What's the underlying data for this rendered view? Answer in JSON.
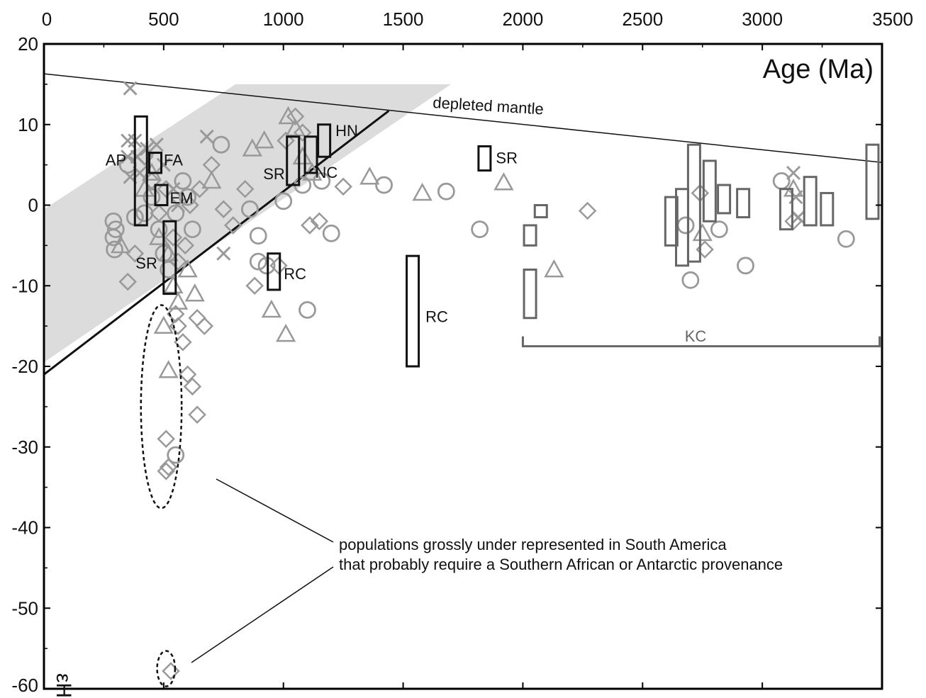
{
  "chart_data": {
    "type": "scatter",
    "xlabel": "Age (Ma)",
    "ylabel": "εHf",
    "xlim": [
      0,
      3500
    ],
    "ylim": [
      -60,
      20
    ],
    "x_ticks": [
      "0",
      "500",
      "1000",
      "1500",
      "2000",
      "2500",
      "3000",
      "3500"
    ],
    "y_ticks": [
      "20",
      "10",
      "0",
      "-10",
      "-20",
      "-30",
      "-40",
      "-50",
      "-60"
    ],
    "depleted_mantle": {
      "label": "depleted mantle",
      "points": [
        [
          0,
          16.3
        ],
        [
          3500,
          5.3
        ]
      ]
    },
    "crustal_line": {
      "points": [
        [
          0,
          -21
        ],
        [
          1440,
          11.7
        ]
      ]
    },
    "grey_band": {
      "polygon": [
        [
          0,
          -0.5
        ],
        [
          800,
          15
        ],
        [
          1700,
          15
        ],
        [
          0,
          -19.5
        ]
      ]
    },
    "annotation": "populations grossly under represented in South America\nthat probably require a Southern African or Antarctic provenance",
    "annotation_lines": [
      "populations grossly under represented in South America",
      "that probably require a Southern African or Antarctic provenance"
    ],
    "kc_bracket": {
      "label": "KC",
      "range": [
        2000,
        3490
      ],
      "y": -17.5
    },
    "ellipses": [
      {
        "cx": 490,
        "cy": -25,
        "rx": 170,
        "ry": 12.6
      },
      {
        "cx": 510,
        "cy": -57.5,
        "rx": 75,
        "ry": 2.2
      }
    ],
    "boxes": [
      {
        "x": 405,
        "ymin": -2.5,
        "ymax": 11,
        "label": "AP",
        "tone": "dark"
      },
      {
        "x": 465,
        "ymin": 4,
        "ymax": 6.5,
        "label": "FA",
        "tone": "dark"
      },
      {
        "x": 490,
        "ymin": 0,
        "ymax": 2.5,
        "label": "EM",
        "tone": "dark"
      },
      {
        "x": 525,
        "ymin": -11,
        "ymax": -2,
        "label": "SR",
        "tone": "dark"
      },
      {
        "x": 1040,
        "ymin": 2.5,
        "ymax": 8.5,
        "label": "SR",
        "tone": "dark"
      },
      {
        "x": 1115,
        "ymin": 4,
        "ymax": 8.5,
        "label": "NC",
        "tone": "dark"
      },
      {
        "x": 1170,
        "ymin": 6,
        "ymax": 10,
        "label": "HN",
        "tone": "dark"
      },
      {
        "x": 960,
        "ymin": -10.5,
        "ymax": -6,
        "label": "RC",
        "tone": "dark"
      },
      {
        "x": 1540,
        "ymin": -20,
        "ymax": -6.3,
        "label": "RC",
        "tone": "dark"
      },
      {
        "x": 1840,
        "ymin": 4.3,
        "ymax": 7.3,
        "label": "SR",
        "tone": "dark"
      },
      {
        "x": 2030,
        "ymin": -14,
        "ymax": -8,
        "label": "",
        "tone": "grey"
      },
      {
        "x": 2030,
        "ymin": -5,
        "ymax": -2.5,
        "label": "",
        "tone": "grey"
      },
      {
        "x": 2075,
        "ymin": -1.5,
        "ymax": 0,
        "label": "",
        "tone": "grey"
      },
      {
        "x": 2620,
        "ymin": -5,
        "ymax": 1,
        "label": "",
        "tone": "grey"
      },
      {
        "x": 2665,
        "ymin": -7.5,
        "ymax": 2,
        "label": "",
        "tone": "grey"
      },
      {
        "x": 2715,
        "ymin": -7,
        "ymax": 7.5,
        "label": "",
        "tone": "grey"
      },
      {
        "x": 2780,
        "ymin": -2,
        "ymax": 5.5,
        "label": "",
        "tone": "grey"
      },
      {
        "x": 2840,
        "ymin": -1,
        "ymax": 2.5,
        "label": "",
        "tone": "grey"
      },
      {
        "x": 2920,
        "ymin": -1.5,
        "ymax": 2,
        "label": "",
        "tone": "grey"
      },
      {
        "x": 3100,
        "ymin": -3,
        "ymax": 2,
        "label": "",
        "tone": "grey"
      },
      {
        "x": 3200,
        "ymin": -2.5,
        "ymax": 3.5,
        "label": "",
        "tone": "grey"
      },
      {
        "x": 3270,
        "ymin": -2.5,
        "ymax": 1.5,
        "label": "",
        "tone": "grey"
      },
      {
        "x": 3460,
        "ymin": -1.7,
        "ymax": 7.5,
        "label": "",
        "tone": "grey"
      }
    ],
    "series": [
      {
        "marker": "circle",
        "points": [
          [
            290,
            -2
          ],
          [
            290,
            -4
          ],
          [
            295,
            -5.5
          ],
          [
            300,
            -3
          ],
          [
            350,
            5
          ],
          [
            380,
            -1.5
          ],
          [
            420,
            -1
          ],
          [
            450,
            1
          ],
          [
            480,
            -3
          ],
          [
            500,
            -6
          ],
          [
            520,
            -8
          ],
          [
            550,
            -1
          ],
          [
            580,
            3
          ],
          [
            600,
            1
          ],
          [
            620,
            -3
          ],
          [
            740,
            7.5
          ],
          [
            860,
            -0.5
          ],
          [
            895,
            -3.8
          ],
          [
            895,
            -7
          ],
          [
            930,
            -7.5
          ],
          [
            1000,
            0.5
          ],
          [
            1080,
            2.5
          ],
          [
            1100,
            -13
          ],
          [
            1160,
            3
          ],
          [
            1200,
            -3.5
          ],
          [
            1420,
            2.5
          ],
          [
            1680,
            1.7
          ],
          [
            1820,
            -3
          ],
          [
            2680,
            -2.5
          ],
          [
            2700,
            -9.3
          ],
          [
            2820,
            -3
          ],
          [
            2930,
            -7.5
          ],
          [
            3080,
            3
          ],
          [
            3350,
            -4.2
          ],
          [
            550,
            -31
          ]
        ]
      },
      {
        "marker": "triangle",
        "points": [
          [
            320,
            -5
          ],
          [
            420,
            2
          ],
          [
            450,
            4
          ],
          [
            480,
            -4
          ],
          [
            520,
            -6
          ],
          [
            540,
            -10
          ],
          [
            560,
            -12
          ],
          [
            600,
            -8
          ],
          [
            630,
            -11
          ],
          [
            700,
            3
          ],
          [
            870,
            7
          ],
          [
            920,
            8
          ],
          [
            950,
            -13
          ],
          [
            1010,
            -16
          ],
          [
            1020,
            11
          ],
          [
            1050,
            9.5
          ],
          [
            1080,
            6
          ],
          [
            1120,
            4
          ],
          [
            1360,
            3.5
          ],
          [
            1580,
            1.5
          ],
          [
            1920,
            2.8
          ],
          [
            2130,
            -8
          ],
          [
            2750,
            -3.5
          ],
          [
            3130,
            2
          ],
          [
            500,
            -15
          ],
          [
            520,
            -20.5
          ]
        ]
      },
      {
        "marker": "diamond",
        "points": [
          [
            350,
            -9.5
          ],
          [
            380,
            -6
          ],
          [
            420,
            6
          ],
          [
            450,
            3
          ],
          [
            480,
            -1
          ],
          [
            510,
            2
          ],
          [
            540,
            -4
          ],
          [
            560,
            -7
          ],
          [
            590,
            -5
          ],
          [
            610,
            0
          ],
          [
            650,
            2
          ],
          [
            700,
            5
          ],
          [
            750,
            -0.5
          ],
          [
            790,
            -2.5
          ],
          [
            840,
            2
          ],
          [
            880,
            -10
          ],
          [
            980,
            -7.5
          ],
          [
            1010,
            8
          ],
          [
            1050,
            11
          ],
          [
            1080,
            9
          ],
          [
            1110,
            -2.5
          ],
          [
            1150,
            -2
          ],
          [
            1250,
            2.3
          ],
          [
            2270,
            -0.7
          ],
          [
            2740,
            1.5
          ],
          [
            2760,
            -5.5
          ],
          [
            3130,
            -2
          ],
          [
            550,
            -13.5
          ],
          [
            560,
            -15
          ],
          [
            580,
            -17
          ],
          [
            600,
            -21
          ],
          [
            620,
            -22.5
          ],
          [
            640,
            -26
          ],
          [
            510,
            -29
          ],
          [
            520,
            -32.5
          ],
          [
            510,
            -33
          ],
          [
            530,
            -57.8
          ],
          [
            640,
            -14
          ],
          [
            670,
            -15
          ]
        ]
      },
      {
        "marker": "cross",
        "points": [
          [
            360,
            14.5
          ],
          [
            350,
            8
          ],
          [
            350,
            6
          ],
          [
            360,
            3.5
          ],
          [
            380,
            8
          ],
          [
            390,
            6
          ],
          [
            400,
            4
          ],
          [
            430,
            7
          ],
          [
            470,
            7.5
          ],
          [
            500,
            5
          ],
          [
            540,
            2
          ],
          [
            560,
            0
          ],
          [
            680,
            8.5
          ],
          [
            750,
            -6
          ],
          [
            3130,
            4
          ],
          [
            3140,
            1
          ],
          [
            3150,
            -1.5
          ]
        ]
      }
    ]
  }
}
